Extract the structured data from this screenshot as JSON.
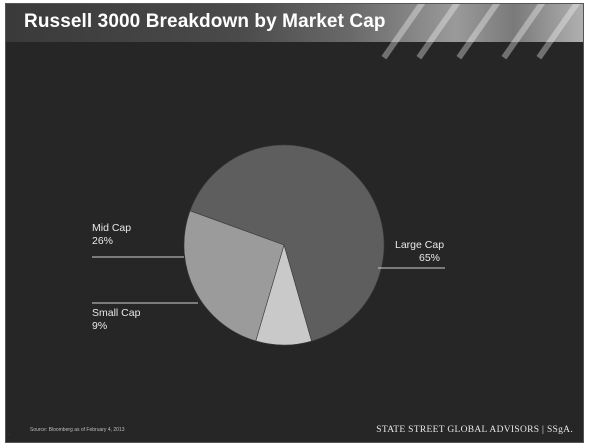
{
  "slide": {
    "title": "Russell 3000 Breakdown by Market Cap",
    "source_note": "Source: Bloomberg as of February 4, 2013",
    "brand_name": "STATE STREET GLOBAL ADVISORS",
    "brand_logo": "SSgA."
  },
  "chart_data": {
    "type": "pie",
    "slices": [
      {
        "name": "Large Cap",
        "value": 65,
        "label": "65%",
        "color": "#5e5e5e"
      },
      {
        "name": "Small Cap",
        "value": 9,
        "label": "9%",
        "color": "#c9c9c9"
      },
      {
        "name": "Mid Cap",
        "value": 26,
        "label": "26%",
        "color": "#9b9b9b"
      }
    ],
    "title": "Russell 3000 Breakdown by Market Cap",
    "legend": "none"
  }
}
